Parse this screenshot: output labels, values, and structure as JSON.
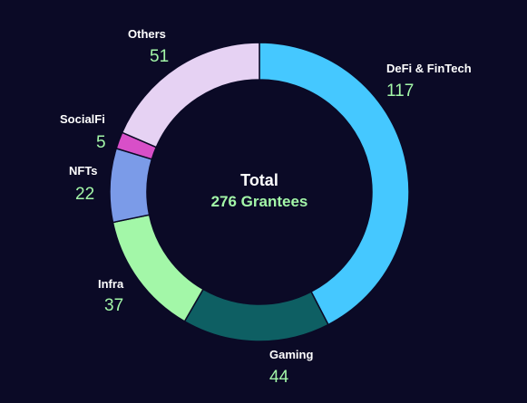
{
  "chart_data": {
    "type": "donut",
    "center_title": "Total",
    "center_subtitle": "276 Grantees",
    "categories": [
      "DeFi & FinTech",
      "Gaming",
      "Infra",
      "NFTs",
      "SocialFi",
      "Others"
    ],
    "values": [
      117,
      44,
      37,
      22,
      5,
      51
    ],
    "colors": [
      "#45c8ff",
      "#0e5f63",
      "#a3f7a8",
      "#7b9be8",
      "#d84fc8",
      "#e6d2f3"
    ]
  }
}
